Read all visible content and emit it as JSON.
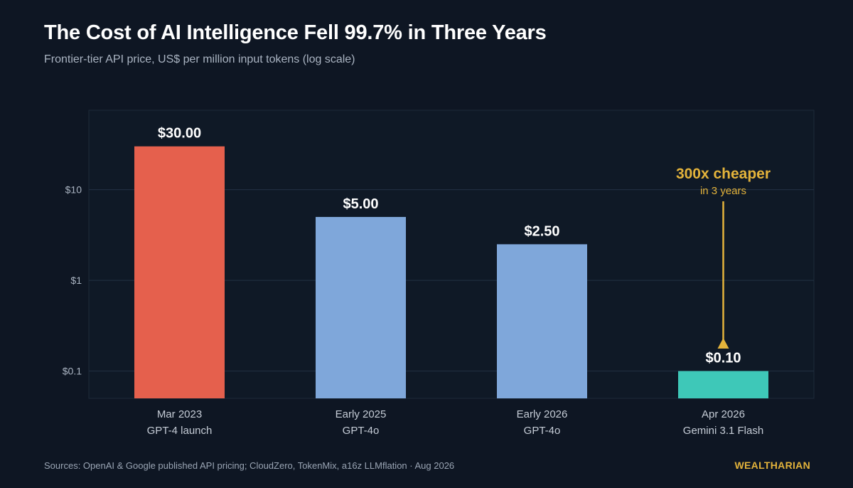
{
  "page": {
    "title": "The Cost of AI Intelligence Fell 99.7% in Three Years",
    "subtitle": "Frontier-tier API price, US$ per million input tokens (log scale)",
    "sources": "Sources: OpenAI & Google published API pricing; CloudZero, TokenMix, a16z LLMflation  ·  Aug 2026",
    "brand": "WEALTHARIAN"
  },
  "colors": {
    "background": "#0e1623",
    "plot_background": "#0f1926",
    "first_bar": "#e5604d",
    "middle_bars": "#7fa7da",
    "last_bar": "#3ec8b8",
    "annotation": "#e3b33b"
  },
  "chart_data": {
    "type": "bar",
    "scale": "log",
    "categories": [
      [
        "Mar 2023",
        "GPT-4 launch"
      ],
      [
        "Early 2025",
        "GPT-4o"
      ],
      [
        "Early 2026",
        "GPT-4o"
      ],
      [
        "Apr 2026",
        "Gemini 3.1 Flash"
      ]
    ],
    "values": [
      30.0,
      5.0,
      2.5,
      0.1
    ],
    "value_labels": [
      "$30.00",
      "$5.00",
      "$2.50",
      "$0.10"
    ],
    "bar_colors": [
      "#e5604d",
      "#7fa7da",
      "#7fa7da",
      "#3ec8b8"
    ],
    "yticks": [
      0.1,
      1,
      10
    ],
    "ytick_labels": [
      "$0.1",
      "$1",
      "$10"
    ],
    "ylim": [
      0.05,
      75
    ],
    "grid": true,
    "annotation": {
      "title": "300x cheaper",
      "subtitle": "in 3 years",
      "target_category": 3
    }
  }
}
